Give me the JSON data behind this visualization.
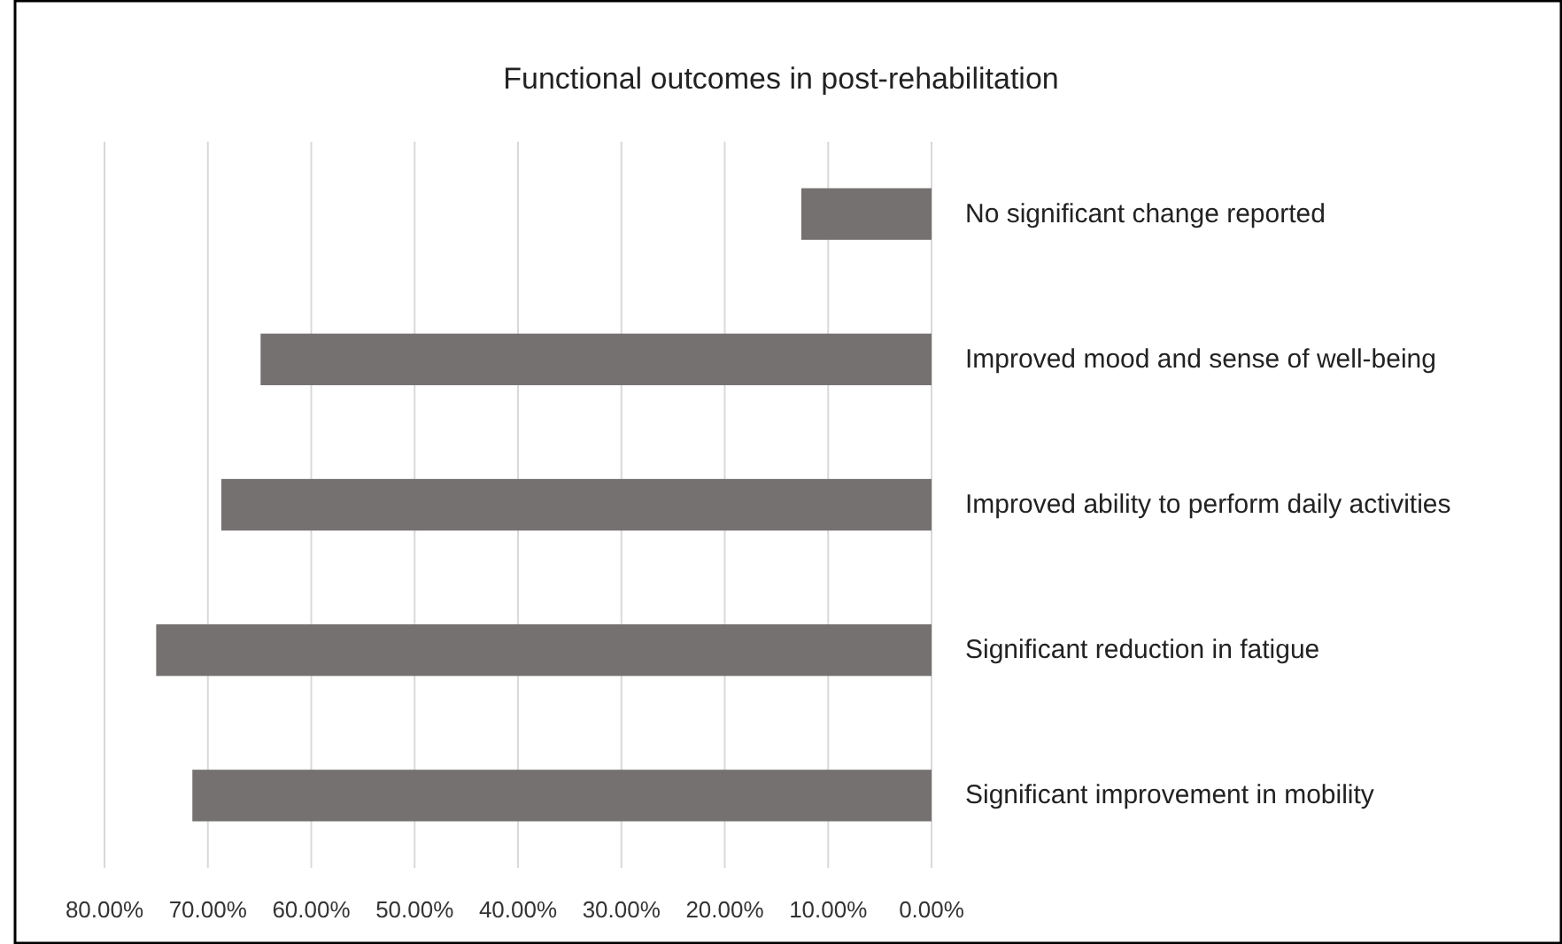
{
  "chart_data": {
    "type": "bar",
    "orientation": "horizontal",
    "title": "Functional outcomes in post-rehabilitation",
    "categories": [
      "No significant change reported",
      "Improved mood and sense of well-being",
      "Improved ability to perform daily activities",
      "Significant reduction in fatigue",
      "Significant improvement in mobility"
    ],
    "values": [
      12.6,
      64.9,
      68.7,
      75.0,
      71.5
    ],
    "color": "#767171",
    "xlim": [
      80,
      0
    ],
    "xticks": [
      {
        "value": 80,
        "label": "80.00%"
      },
      {
        "value": 70,
        "label": "70.00%"
      },
      {
        "value": 60,
        "label": "60.00%"
      },
      {
        "value": 50,
        "label": "50.00%"
      },
      {
        "value": 40,
        "label": "40.00%"
      },
      {
        "value": 30,
        "label": "30.00%"
      },
      {
        "value": 20,
        "label": "20.00%"
      },
      {
        "value": 10,
        "label": "10.00%"
      },
      {
        "value": 0,
        "label": "0.00%"
      }
    ],
    "grid": "x"
  }
}
